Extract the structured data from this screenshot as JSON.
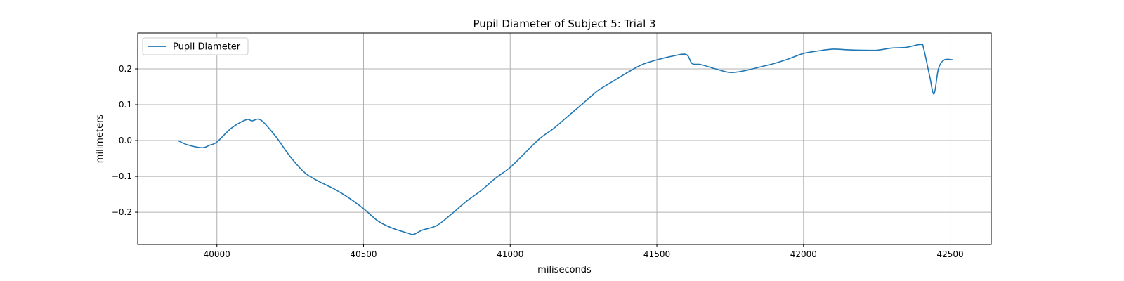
{
  "chart_data": {
    "type": "line",
    "title": "Pupil Diameter of Subject 5: Trial 3",
    "xlabel": "miliseconds",
    "ylabel": "milimeters",
    "xlim": [
      39730,
      42640
    ],
    "ylim": [
      -0.29,
      0.3
    ],
    "xticks": [
      40000,
      40500,
      41000,
      41500,
      42000,
      42500
    ],
    "yticks": [
      -0.2,
      -0.1,
      0.0,
      0.1,
      0.2
    ],
    "ytick_labels": [
      "−0.2",
      "−0.1",
      "0.0",
      "0.1",
      "0.2"
    ],
    "grid": true,
    "legend_position": "upper-left",
    "series": [
      {
        "name": "Pupil Diameter",
        "color": "#1f77b4",
        "x": [
          39867,
          39900,
          39950,
          39975,
          40000,
          40050,
          40100,
          40120,
          40150,
          40200,
          40250,
          40300,
          40350,
          40400,
          40450,
          40500,
          40550,
          40600,
          40650,
          40670,
          40700,
          40750,
          40800,
          40850,
          40900,
          40950,
          41000,
          41050,
          41100,
          41150,
          41200,
          41250,
          41300,
          41350,
          41400,
          41450,
          41500,
          41550,
          41600,
          41620,
          41650,
          41700,
          41750,
          41800,
          41850,
          41900,
          41950,
          42000,
          42050,
          42100,
          42150,
          42200,
          42250,
          42300,
          42350,
          42400,
          42410,
          42430,
          42445,
          42460,
          42480,
          42510
        ],
        "y": [
          0.0,
          -0.012,
          -0.02,
          -0.013,
          -0.004,
          0.035,
          0.058,
          0.055,
          0.057,
          0.012,
          -0.045,
          -0.09,
          -0.115,
          -0.135,
          -0.16,
          -0.19,
          -0.225,
          -0.245,
          -0.258,
          -0.262,
          -0.25,
          -0.237,
          -0.205,
          -0.17,
          -0.14,
          -0.105,
          -0.075,
          -0.035,
          0.005,
          0.035,
          0.07,
          0.105,
          0.14,
          0.165,
          0.19,
          0.212,
          0.225,
          0.235,
          0.24,
          0.215,
          0.212,
          0.2,
          0.19,
          0.195,
          0.205,
          0.215,
          0.228,
          0.243,
          0.25,
          0.255,
          0.253,
          0.252,
          0.252,
          0.258,
          0.26,
          0.268,
          0.255,
          0.18,
          0.13,
          0.2,
          0.225,
          0.225
        ]
      }
    ]
  }
}
